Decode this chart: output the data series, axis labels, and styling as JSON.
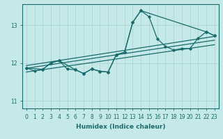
{
  "xlabel": "Humidex (Indice chaleur)",
  "ylabel": "",
  "bg_color": "#c5e8e8",
  "grid_color": "#aed4d4",
  "line_color": "#1a6b6b",
  "xlim": [
    -0.5,
    23.5
  ],
  "ylim": [
    10.8,
    13.55
  ],
  "yticks": [
    11,
    12,
    13
  ],
  "xticks": [
    0,
    1,
    2,
    3,
    4,
    5,
    6,
    7,
    8,
    9,
    10,
    11,
    12,
    13,
    14,
    15,
    16,
    17,
    18,
    19,
    20,
    21,
    22,
    23
  ],
  "main_x": [
    0,
    1,
    2,
    3,
    4,
    5,
    6,
    7,
    8,
    9,
    10,
    11,
    12,
    13,
    14,
    15,
    16,
    17,
    18,
    19,
    20,
    21,
    22,
    23
  ],
  "main_y": [
    11.87,
    11.79,
    11.83,
    12.0,
    12.06,
    11.84,
    11.82,
    11.72,
    11.84,
    11.78,
    11.76,
    12.22,
    12.28,
    13.07,
    13.38,
    13.22,
    12.64,
    12.44,
    12.34,
    12.38,
    12.38,
    12.65,
    12.82,
    12.72
  ],
  "reg_lines": [
    {
      "x": [
        0,
        23
      ],
      "y": [
        11.76,
        12.48
      ]
    },
    {
      "x": [
        0,
        23
      ],
      "y": [
        11.86,
        12.6
      ]
    },
    {
      "x": [
        0,
        23
      ],
      "y": [
        11.93,
        12.7
      ]
    }
  ],
  "extra_line_x": [
    0,
    2,
    3,
    4,
    6,
    7,
    8,
    9,
    10,
    11,
    12,
    13,
    14,
    22,
    23
  ],
  "extra_line_y": [
    11.87,
    11.83,
    12.0,
    12.06,
    11.82,
    11.72,
    11.84,
    11.78,
    11.76,
    12.22,
    12.28,
    13.07,
    13.38,
    12.82,
    12.72
  ]
}
